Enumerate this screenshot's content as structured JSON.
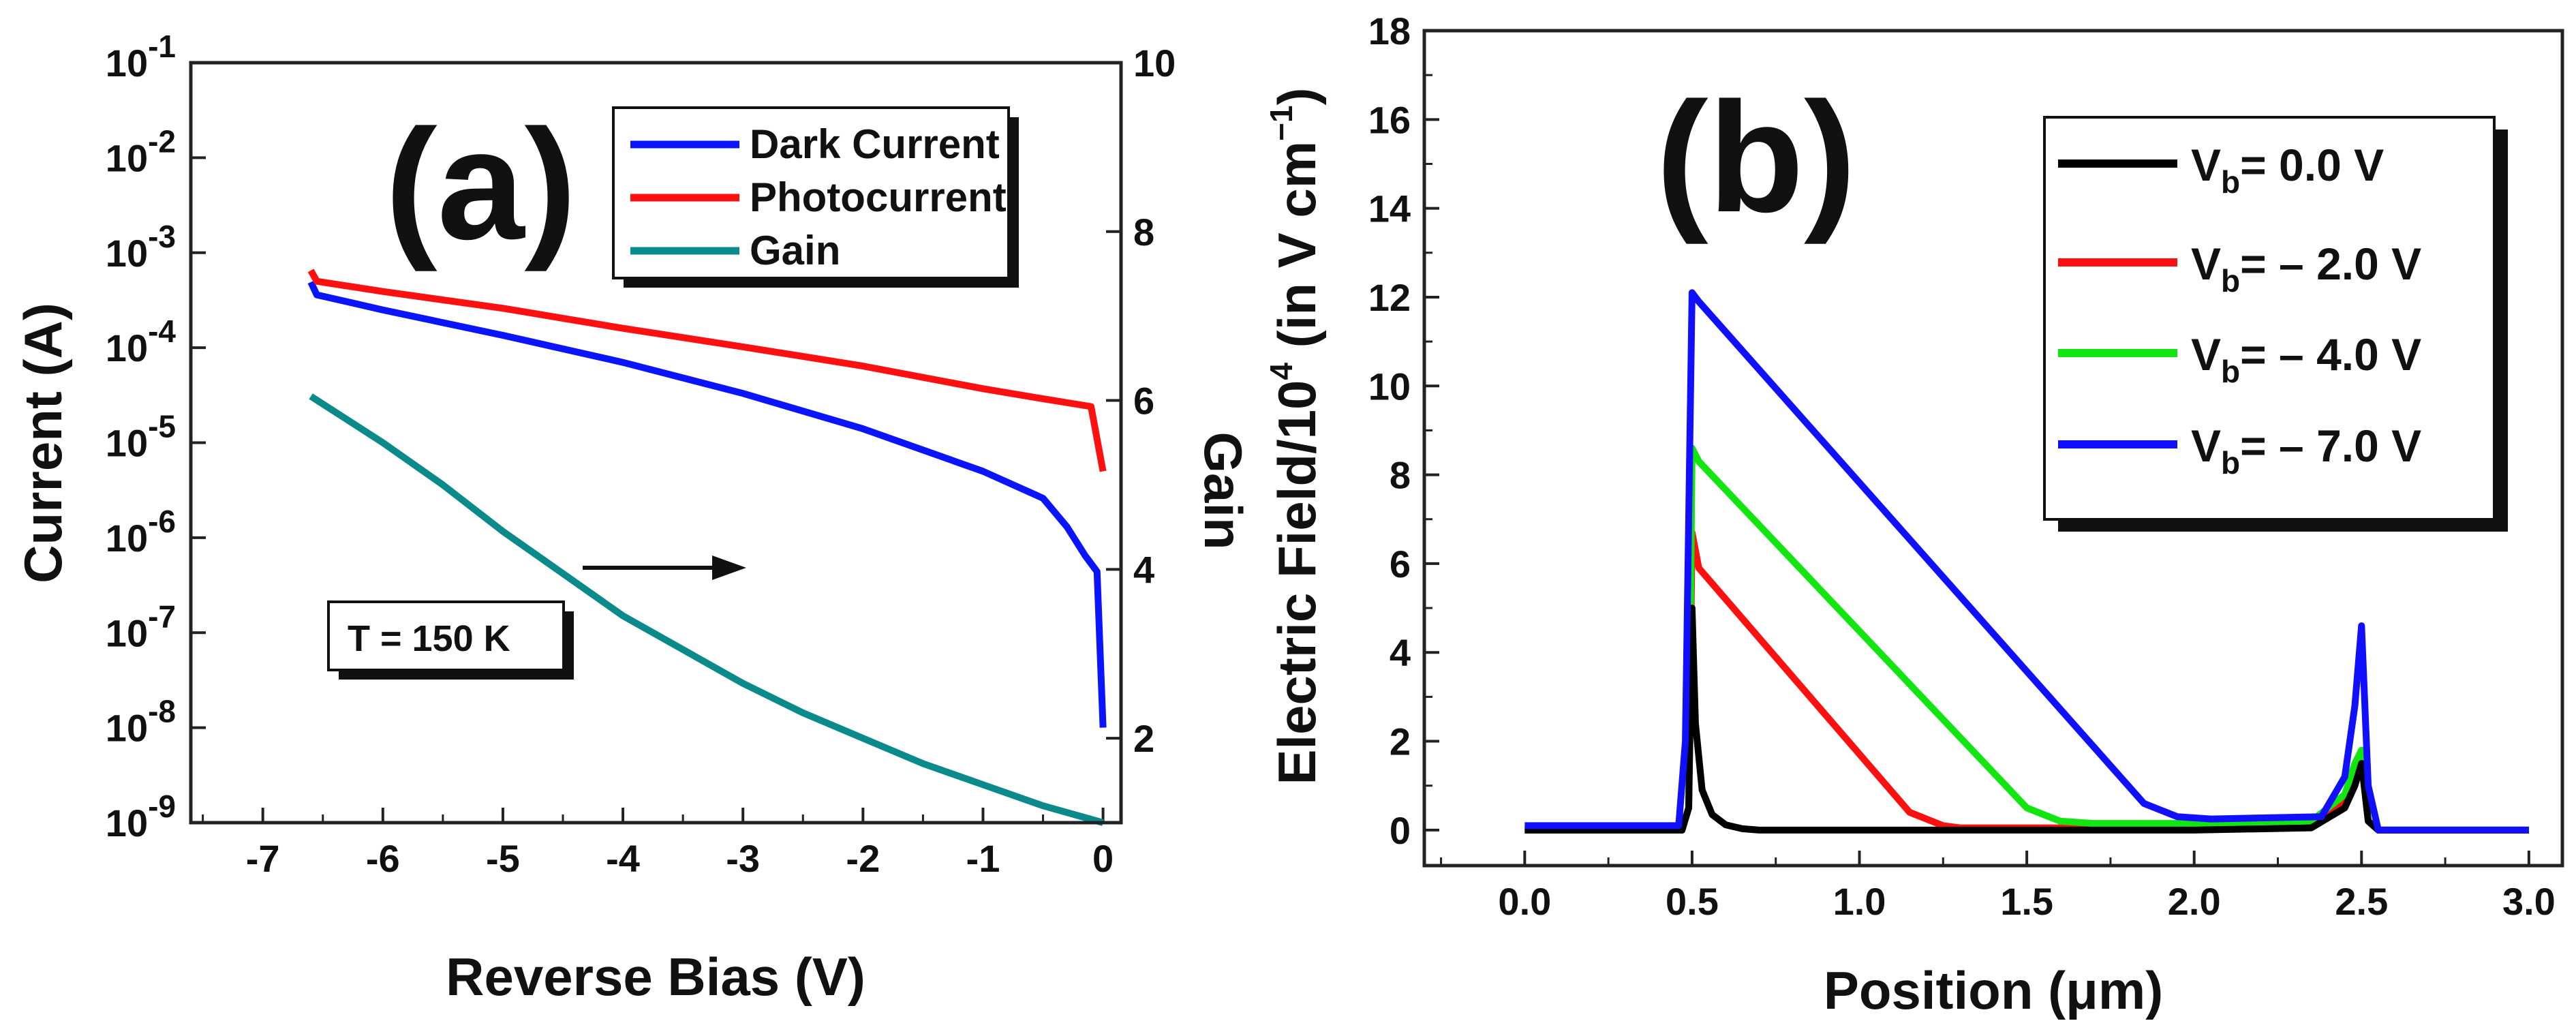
{
  "chart_data": [
    {
      "panel": "(a)",
      "type": "line",
      "title": "",
      "xlabel": "Reverse Bias (V)",
      "ylabel": "Current (A)",
      "y2label": "Gain",
      "xlim": [
        -7.6,
        0.15
      ],
      "ylim": [
        1e-09,
        0.1
      ],
      "yscale": "log",
      "y2lim": [
        1,
        10
      ],
      "x_ticks": [
        -7,
        -6,
        -5,
        -4,
        -3,
        -2,
        -1,
        0
      ],
      "x_tick_labels": [
        "-7",
        "-6",
        "-5",
        "-4",
        "-3",
        "-2",
        "-1",
        "0"
      ],
      "y_ticks": [
        {
          "value": 1e-09,
          "base": "10",
          "exp": "-9"
        },
        {
          "value": 1e-08,
          "base": "10",
          "exp": "-8"
        },
        {
          "value": 1e-07,
          "base": "10",
          "exp": "-7"
        },
        {
          "value": 1e-06,
          "base": "10",
          "exp": "-6"
        },
        {
          "value": 1e-05,
          "base": "10",
          "exp": "-5"
        },
        {
          "value": 0.0001,
          "base": "10",
          "exp": "-4"
        },
        {
          "value": 0.001,
          "base": "10",
          "exp": "-3"
        },
        {
          "value": 0.01,
          "base": "10",
          "exp": "-2"
        },
        {
          "value": 0.1,
          "base": "10",
          "exp": "-1"
        }
      ],
      "y2_ticks": [
        2,
        4,
        6,
        8,
        10
      ],
      "legend": [
        "Dark Current",
        "Photocurrent",
        "Gain"
      ],
      "legend_position": "top-right",
      "annotation": "T = 150 K",
      "series": [
        {
          "name": "Dark Current",
          "axis": "left",
          "color": "#0a14ff",
          "x": [
            -6.6,
            -6.55,
            -6.0,
            -5.0,
            -4.0,
            -3.0,
            -2.0,
            -1.0,
            -0.5,
            -0.3,
            -0.15,
            -0.05,
            0.0
          ],
          "y": [
            0.00049,
            0.00036,
            0.00025,
            0.000135,
            7e-05,
            3.3e-05,
            1.4e-05,
            5e-06,
            2.6e-06,
            1.3e-06,
            6.5e-07,
            4.4e-07,
            1e-08
          ]
        },
        {
          "name": "Photocurrent",
          "axis": "left",
          "color": "#ff1010",
          "x": [
            -6.6,
            -6.55,
            -6.0,
            -5.0,
            -4.0,
            -3.0,
            -2.0,
            -1.0,
            -0.5,
            -0.1,
            0.0
          ],
          "y": [
            0.00065,
            0.0005,
            0.00039,
            0.00026,
            0.00016,
            0.000102,
            6.4e-05,
            3.7e-05,
            2.9e-05,
            2.4e-05,
            5e-06
          ]
        },
        {
          "name": "Gain",
          "axis": "right",
          "color": "#0a8a8a",
          "x": [
            -6.6,
            -6.0,
            -5.5,
            -5.0,
            -4.5,
            -4.0,
            -3.5,
            -3.0,
            -2.5,
            -2.0,
            -1.5,
            -1.0,
            -0.5,
            0.0
          ],
          "y": [
            6.05,
            5.5,
            5.0,
            4.45,
            3.95,
            3.45,
            3.05,
            2.65,
            2.3,
            2.0,
            1.7,
            1.45,
            1.2,
            1.0
          ]
        }
      ]
    },
    {
      "panel": "(b)",
      "type": "line",
      "title": "",
      "xlabel": "Position (μm)",
      "ylabel_main": "Electric Field/10",
      "ylabel_exp": "4",
      "ylabel_unit": " (in V cm",
      "ylabel_unit_exp": "−1",
      "ylabel_close": ")",
      "xlim": [
        -0.3,
        3.1
      ],
      "ylim": [
        -0.8,
        18
      ],
      "x_ticks": [
        0.0,
        0.5,
        1.0,
        1.5,
        2.0,
        2.5,
        3.0
      ],
      "x_tick_labels": [
        "0.0",
        "0.5",
        "1.0",
        "1.5",
        "2.0",
        "2.5",
        "3.0"
      ],
      "y_ticks": [
        0,
        2,
        4,
        6,
        8,
        10,
        12,
        14,
        16,
        18
      ],
      "y_tick_labels": [
        "0",
        "2",
        "4",
        "6",
        "8",
        "10",
        "12",
        "14",
        "16",
        "18"
      ],
      "legend_position": "top-right",
      "legend": [
        {
          "prefix": "V",
          "sub": "b",
          "value": "= 0.0 V"
        },
        {
          "prefix": "V",
          "sub": "b",
          "value": "= – 2.0 V"
        },
        {
          "prefix": "V",
          "sub": "b",
          "value": "= – 4.0 V"
        },
        {
          "prefix": "V",
          "sub": "b",
          "value": "= – 7.0 V"
        }
      ],
      "series": [
        {
          "name": "Vb = 0.0 V",
          "color": "#000000",
          "x": [
            0.0,
            0.47,
            0.49,
            0.5,
            0.51,
            0.53,
            0.56,
            0.6,
            0.65,
            0.7,
            1.0,
            2.0,
            2.35,
            2.45,
            2.48,
            2.5,
            2.52,
            2.55,
            3.0
          ],
          "y": [
            0.0,
            0.0,
            0.5,
            5.0,
            2.4,
            0.9,
            0.35,
            0.12,
            0.03,
            0.0,
            0.0,
            0.0,
            0.05,
            0.5,
            1.0,
            1.5,
            0.2,
            0.0,
            0.0
          ]
        },
        {
          "name": "Vb = – 2.0 V",
          "color": "#ff1010",
          "x": [
            0.0,
            0.47,
            0.49,
            0.5,
            0.52,
            1.15,
            1.25,
            1.3,
            2.0,
            2.35,
            2.45,
            2.48,
            2.5,
            2.52,
            2.55,
            3.0
          ],
          "y": [
            0.0,
            0.0,
            0.5,
            6.7,
            5.9,
            0.4,
            0.1,
            0.05,
            0.05,
            0.1,
            0.6,
            1.2,
            1.6,
            0.2,
            0.0,
            0.0
          ]
        },
        {
          "name": "Vb = – 4.0 V",
          "color": "#11e611",
          "x": [
            0.0,
            0.47,
            0.49,
            0.5,
            0.52,
            1.5,
            1.6,
            1.7,
            2.0,
            2.35,
            2.45,
            2.48,
            2.5,
            2.52,
            2.55,
            3.0
          ],
          "y": [
            0.0,
            0.0,
            0.5,
            8.6,
            8.3,
            0.5,
            0.2,
            0.15,
            0.15,
            0.2,
            0.8,
            1.5,
            1.8,
            0.2,
            0.0,
            0.0
          ]
        },
        {
          "name": "Vb = – 7.0 V",
          "color": "#1010ff",
          "x": [
            0.0,
            0.46,
            0.48,
            0.5,
            0.52,
            1.85,
            1.95,
            2.05,
            2.38,
            2.45,
            2.48,
            2.5,
            2.52,
            2.55,
            3.0
          ],
          "y": [
            0.1,
            0.1,
            2.0,
            12.1,
            11.9,
            0.6,
            0.3,
            0.25,
            0.3,
            1.2,
            2.8,
            4.6,
            1.0,
            0.0,
            0.0
          ]
        }
      ]
    }
  ]
}
